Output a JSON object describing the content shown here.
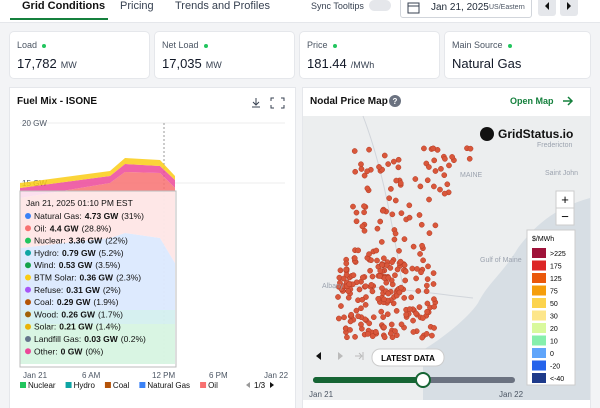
{
  "tabs": [
    "Grid Conditions",
    "Pricing",
    "Trends and Profiles"
  ],
  "sync_tooltips": "Sync Tooltips",
  "date": "Jan 21, 2025",
  "timezone": "US/Eastern",
  "cards": [
    {
      "label": "Load",
      "value": "17,782",
      "unit": "MW"
    },
    {
      "label": "Net Load",
      "value": "17,035",
      "unit": "MW"
    },
    {
      "label": "Price",
      "value": "181.44",
      "unit": "/MWh"
    },
    {
      "label": "Main Source",
      "value": "Natural Gas"
    }
  ],
  "fuel_mix": {
    "title": "Fuel Mix - ISONE",
    "yticks": [
      "20 GW",
      "15 GW"
    ],
    "xticks": [
      "Jan 21",
      "6 AM",
      "12 PM",
      "6 PM",
      "Jan 22"
    ],
    "tooltip": {
      "header": "Jan 21, 2025 01:10 PM EST",
      "rows": [
        {
          "name": "Natural Gas:",
          "value": "4.73 GW",
          "share": "(31%)",
          "color": "#3b82f6"
        },
        {
          "name": "Oil:",
          "value": "4.4 GW",
          "share": "(28.8%)",
          "color": "#f87171"
        },
        {
          "name": "Nuclear:",
          "value": "3.36 GW",
          "share": "(22%)",
          "color": "#22c55e"
        },
        {
          "name": "Hydro:",
          "value": "0.79 GW",
          "share": "(5.2%)",
          "color": "#0ea5a4"
        },
        {
          "name": "Wind:",
          "value": "0.53 GW",
          "share": "(3.5%)",
          "color": "#16a34a"
        },
        {
          "name": "BTM Solar:",
          "value": "0.36 GW",
          "share": "(2.3%)",
          "color": "#facc15"
        },
        {
          "name": "Refuse:",
          "value": "0.31 GW",
          "share": "(2%)",
          "color": "#a855f7"
        },
        {
          "name": "Coal:",
          "value": "0.29 GW",
          "share": "(1.9%)",
          "color": "#b45309"
        },
        {
          "name": "Wood:",
          "value": "0.26 GW",
          "share": "(1.7%)",
          "color": "#a16207"
        },
        {
          "name": "Solar:",
          "value": "0.21 GW",
          "share": "(1.4%)",
          "color": "#eab308"
        },
        {
          "name": "Landfill Gas:",
          "value": "0.03 GW",
          "share": "(0.2%)",
          "color": "#64748b"
        },
        {
          "name": "Other:",
          "value": "0 GW",
          "share": "(0%)",
          "color": "#ec4899"
        }
      ]
    },
    "legend": [
      {
        "name": "Nuclear",
        "color": "#22c55e"
      },
      {
        "name": "Hydro",
        "color": "#0ea5a4"
      },
      {
        "name": "Coal",
        "color": "#b45309"
      },
      {
        "name": "Natural Gas",
        "color": "#3b82f6"
      },
      {
        "name": "Oil",
        "color": "#f87171"
      }
    ],
    "legend_page": "1/3"
  },
  "map": {
    "title": "Nodal Price Map",
    "open": "Open Map",
    "brand": "GridStatus.io",
    "legend_title": "$/MWh",
    "legend": [
      {
        "label": ">225",
        "color": "#9f1239"
      },
      {
        "label": "175",
        "color": "#dc2626"
      },
      {
        "label": "125",
        "color": "#ea580c"
      },
      {
        "label": "75",
        "color": "#f59e0b"
      },
      {
        "label": "50",
        "color": "#fcd34d"
      },
      {
        "label": "30",
        "color": "#fde68a"
      },
      {
        "label": "20",
        "color": "#d9f99d"
      },
      {
        "label": "10",
        "color": "#86efac"
      },
      {
        "label": "0",
        "color": "#60a5fa"
      },
      {
        "label": "-20",
        "color": "#2563eb"
      },
      {
        "label": "<-40",
        "color": "#1e3a8a"
      }
    ],
    "places": [
      {
        "text": "MAINE",
        "x": 460,
        "y": 177
      },
      {
        "text": "Fredericton",
        "x": 537,
        "y": 147
      },
      {
        "text": "Saint John",
        "x": 545,
        "y": 175
      },
      {
        "text": "Albany",
        "x": 322,
        "y": 288
      },
      {
        "text": "Gulf of Maine",
        "x": 480,
        "y": 262
      }
    ],
    "button": "LATEST DATA",
    "slider": [
      "Jan 21",
      "Jan 22"
    ]
  }
}
